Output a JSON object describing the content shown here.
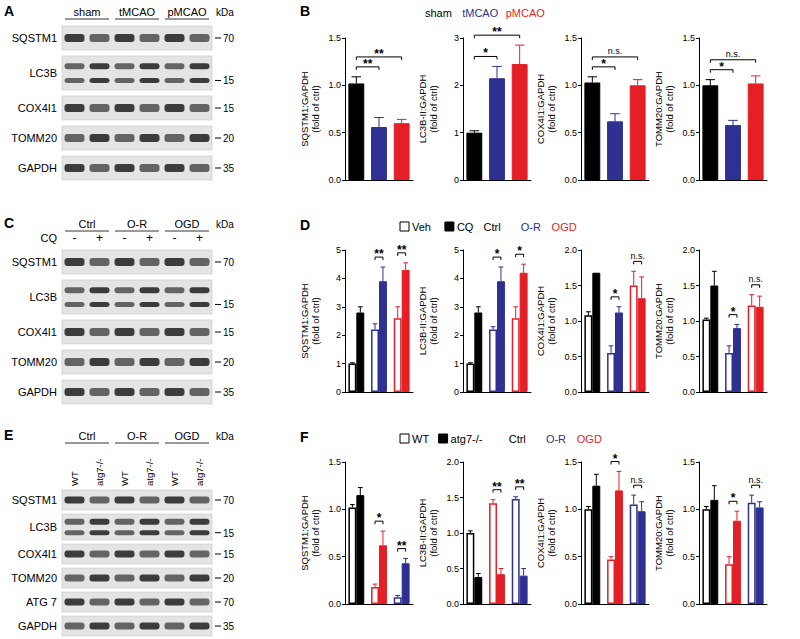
{
  "blots": [
    {
      "letter": "A",
      "kda_title": "kDa",
      "groups": [
        {
          "text": "sham",
          "span": 2
        },
        {
          "text": "tMCAO",
          "span": 2
        },
        {
          "text": "pMCAO",
          "span": 2
        }
      ],
      "rows": [
        {
          "label": "SQSTM1",
          "kda": 70
        },
        {
          "label": "LC3B",
          "kda": 15,
          "bands": 2
        },
        {
          "label": "COX4I1",
          "kda": 15
        },
        {
          "label": "TOMM20",
          "kda": 20
        },
        {
          "label": "GAPDH",
          "kda": 35
        }
      ]
    },
    {
      "letter": "C",
      "kda_title": "kDa",
      "groups": [
        {
          "text": "Ctrl",
          "span": 2
        },
        {
          "text": "O-R",
          "span": 2
        },
        {
          "text": "OGD",
          "span": 2
        }
      ],
      "subrow": {
        "label": "CQ",
        "lanes": [
          "-",
          "+",
          "-",
          "+",
          "-",
          "+"
        ]
      },
      "rows": [
        {
          "label": "SQSTM1",
          "kda": 70
        },
        {
          "label": "LC3B",
          "kda": 15,
          "bands": 2
        },
        {
          "label": "COX4I1",
          "kda": 15
        },
        {
          "label": "TOMM20",
          "kda": 20
        },
        {
          "label": "GAPDH",
          "kda": 35
        }
      ]
    },
    {
      "letter": "E",
      "kda_title": "kDa",
      "groups": [
        {
          "text": "Ctrl",
          "span": 2
        },
        {
          "text": "O-R",
          "span": 2
        },
        {
          "text": "OGD",
          "span": 2
        }
      ],
      "subrow": {
        "lanes": [
          "WT",
          "atg7-/-",
          "WT",
          "atg7-/-",
          "WT",
          "atg7-/-"
        ]
      },
      "rows": [
        {
          "label": "SQSTM1",
          "kda": 70
        },
        {
          "label": "LC3B",
          "kda": 15,
          "bands": 2
        },
        {
          "label": "COX4I1",
          "kda": 15
        },
        {
          "label": "TOMM20",
          "kda": 20
        },
        {
          "label": "ATG 7",
          "kda": 70
        },
        {
          "label": "GAPDH",
          "kda": 35
        }
      ]
    }
  ],
  "panels": [
    {
      "letter": "B",
      "legend": [
        {
          "text": "sham",
          "color": "#000000"
        },
        {
          "text": "tMCAO",
          "color": "#2e3192"
        },
        {
          "text": "pMCAO",
          "color": "#e41f26"
        }
      ]
    },
    {
      "letter": "D",
      "legend": [
        {
          "text": "Veh",
          "marker": "open"
        },
        {
          "text": "CQ",
          "marker": "filled"
        },
        {
          "text": "Ctrl",
          "color": "#000000"
        },
        {
          "text": "O-R",
          "color": "#2e3192"
        },
        {
          "text": "OGD",
          "color": "#e41f26"
        }
      ]
    },
    {
      "letter": "F",
      "legend": [
        {
          "text": "WT",
          "marker": "open"
        },
        {
          "text": "atg7-/-",
          "marker": "filled"
        },
        {
          "text": "Ctrl",
          "color": "#000000"
        },
        {
          "text": "O-R",
          "color": "#2e3192"
        },
        {
          "text": "OGD",
          "color": "#e41f26"
        }
      ]
    }
  ],
  "chart_data": [
    {
      "type": "bar",
      "panel": "B",
      "ylabel": "SQSTM1:GAPDH\n(fold of ctrl)",
      "categories": [
        null,
        null,
        null
      ],
      "series": [
        {
          "values": [
            1.02,
            0.56,
            0.6
          ],
          "errors": [
            0.07,
            0.1,
            0.04
          ],
          "colors": [
            "#000000",
            "#2e3192",
            "#e41f26"
          ],
          "marker": "filled"
        }
      ],
      "ylim": [
        0,
        1.5
      ],
      "yticks": [
        {
          "value": 0,
          "label": "0.0"
        },
        0.5,
        {
          "value": 1,
          "label": "1.0"
        },
        1.5
      ],
      "grid": false,
      "tick_labels": "y",
      "annotations": [
        {
          "text": "**",
          "from": 0,
          "to": 1
        },
        {
          "text": "**",
          "from": 0,
          "to": 2
        }
      ]
    },
    {
      "type": "bar",
      "panel": "B",
      "ylabel": "LC3B-II:GAPDH\n(fold of ctrl)",
      "categories": [
        null,
        null,
        null
      ],
      "series": [
        {
          "values": [
            1.0,
            2.15,
            2.45
          ],
          "errors": [
            0.04,
            0.25,
            0.4
          ],
          "colors": [
            "#000000",
            "#2e3192",
            "#e41f26"
          ],
          "marker": "filled"
        }
      ],
      "ylim": [
        0,
        3
      ],
      "yticks": [
        0,
        1,
        2,
        3
      ],
      "grid": false,
      "tick_labels": "y",
      "annotations": [
        {
          "text": "*",
          "from": 0,
          "to": 1
        },
        {
          "text": "**",
          "from": 0,
          "to": 2
        }
      ]
    },
    {
      "type": "bar",
      "panel": "B",
      "ylabel": "COX4I1:GAPDH\n(fold of ctrl)",
      "categories": [
        null,
        null,
        null
      ],
      "series": [
        {
          "values": [
            1.03,
            0.62,
            1.0
          ],
          "errors": [
            0.06,
            0.08,
            0.06
          ],
          "colors": [
            "#000000",
            "#2e3192",
            "#e41f26"
          ],
          "marker": "filled"
        }
      ],
      "ylim": [
        0,
        1.5
      ],
      "yticks": [
        {
          "value": 0,
          "label": "0.0"
        },
        0.5,
        {
          "value": 1,
          "label": "1.0"
        },
        1.5
      ],
      "grid": false,
      "tick_labels": "y",
      "annotations": [
        {
          "text": "*",
          "from": 0,
          "to": 1
        },
        {
          "text": "n.s.",
          "from": 0,
          "to": 2
        }
      ]
    },
    {
      "type": "bar",
      "panel": "B",
      "ylabel": "TOMM20:GAPDH\n(fold of ctrl)",
      "categories": [
        null,
        null,
        null
      ],
      "series": [
        {
          "values": [
            1.0,
            0.58,
            1.02
          ],
          "errors": [
            0.06,
            0.05,
            0.08
          ],
          "colors": [
            "#000000",
            "#2e3192",
            "#e41f26"
          ],
          "marker": "filled"
        }
      ],
      "ylim": [
        0,
        1.5
      ],
      "yticks": [
        {
          "value": 0,
          "label": "0.0"
        },
        0.5,
        {
          "value": 1,
          "label": "1.0"
        },
        1.5
      ],
      "grid": false,
      "tick_labels": "y",
      "annotations": [
        {
          "text": "*",
          "from": 0,
          "to": 1
        },
        {
          "text": "n.s.",
          "from": 0,
          "to": 2
        }
      ]
    },
    {
      "type": "bar",
      "panel": "D",
      "ylabel": "SQSTM1:GAPDH\n(fold of ctrl)",
      "categories": [
        null,
        null,
        null
      ],
      "series": [
        {
          "values": [
            1.0,
            2.2,
            2.6
          ],
          "errors": [
            0.03,
            0.2,
            0.4
          ],
          "colors": [
            "#000000",
            "#2e3192",
            "#e41f26"
          ],
          "marker": "open"
        },
        {
          "values": [
            2.8,
            3.9,
            4.3
          ],
          "errors": [
            0.2,
            0.5,
            0.25
          ],
          "colors": [
            "#000000",
            "#2e3192",
            "#e41f26"
          ],
          "marker": "filled"
        }
      ],
      "ylim": [
        0,
        5
      ],
      "yticks": [
        0,
        1,
        2,
        3,
        4,
        5
      ],
      "grid": false,
      "tick_labels": "y",
      "annotations": [
        {
          "text": "**",
          "from": 2,
          "to": 3
        },
        {
          "text": "**",
          "from": 4,
          "to": 5
        }
      ]
    },
    {
      "type": "bar",
      "panel": "D",
      "ylabel": "LC3B-II:GAPDH\n(fold of ctrl)",
      "categories": [
        null,
        null,
        null
      ],
      "series": [
        {
          "values": [
            1.0,
            2.2,
            2.6
          ],
          "errors": [
            0.03,
            0.1,
            0.4
          ],
          "colors": [
            "#000000",
            "#2e3192",
            "#e41f26"
          ],
          "marker": "open"
        },
        {
          "values": [
            2.8,
            3.9,
            4.2
          ],
          "errors": [
            0.2,
            0.5,
            0.3
          ],
          "colors": [
            "#000000",
            "#2e3192",
            "#e41f26"
          ],
          "marker": "filled"
        }
      ],
      "ylim": [
        0,
        5
      ],
      "yticks": [
        0,
        1,
        2,
        3,
        4,
        5
      ],
      "grid": false,
      "tick_labels": "y",
      "annotations": [
        {
          "text": "*",
          "from": 2,
          "to": 3
        },
        {
          "text": "*",
          "from": 4,
          "to": 5
        }
      ]
    },
    {
      "type": "bar",
      "panel": "D",
      "ylabel": "COX4I1:GAPDH\n(fold of ctrl)",
      "categories": [
        null,
        null,
        null
      ],
      "series": [
        {
          "values": [
            1.08,
            0.55,
            1.5
          ],
          "errors": [
            0.05,
            0.1,
            0.2
          ],
          "colors": [
            "#000000",
            "#2e3192",
            "#e41f26"
          ],
          "marker": "open"
        },
        {
          "values": [
            1.68,
            1.12,
            1.32
          ],
          "errors": [
            0,
            0.08,
            0.3
          ],
          "colors": [
            "#000000",
            "#2e3192",
            "#e41f26"
          ],
          "marker": "filled"
        }
      ],
      "ylim": [
        0,
        2
      ],
      "yticks": [
        {
          "value": 0,
          "label": "0.0"
        },
        0.5,
        {
          "value": 1,
          "label": "1.0"
        },
        1.5,
        {
          "value": 2,
          "label": "2.0"
        }
      ],
      "grid": false,
      "tick_labels": "y",
      "annotations": [
        {
          "text": "*",
          "from": 2,
          "to": 3
        },
        {
          "text": "n.s.",
          "from": 4,
          "to": 5
        }
      ]
    },
    {
      "type": "bar",
      "panel": "D",
      "ylabel": "TOMM20:GAPDH\n(fold of ctrl)",
      "categories": [
        null,
        null,
        null
      ],
      "series": [
        {
          "values": [
            1.02,
            0.55,
            1.22
          ],
          "errors": [
            0.02,
            0.1,
            0.15
          ],
          "colors": [
            "#000000",
            "#2e3192",
            "#e41f26"
          ],
          "marker": "open"
        },
        {
          "values": [
            1.5,
            0.9,
            1.2
          ],
          "errors": [
            0.2,
            0.05,
            0.15
          ],
          "colors": [
            "#000000",
            "#2e3192",
            "#e41f26"
          ],
          "marker": "filled"
        }
      ],
      "ylim": [
        0,
        2
      ],
      "yticks": [
        {
          "value": 0,
          "label": "0.0"
        },
        0.5,
        {
          "value": 1,
          "label": "1.0"
        },
        1.5,
        {
          "value": 2,
          "label": "2.0"
        }
      ],
      "grid": false,
      "tick_labels": "y",
      "annotations": [
        {
          "text": "*",
          "from": 2,
          "to": 3
        },
        {
          "text": "n.s.",
          "from": 4,
          "to": 5
        }
      ]
    },
    {
      "type": "bar",
      "panel": "F",
      "ylabel": "SQSTM1:GAPDH\n(fold of ctrl)",
      "categories": [
        null,
        null,
        null
      ],
      "series": [
        {
          "values": [
            1.02,
            0.18,
            0.07
          ],
          "errors": [
            0.03,
            0.03,
            0.02
          ],
          "colors": [
            "#000000",
            "#e41f26",
            "#2e3192"
          ],
          "marker": "open"
        },
        {
          "values": [
            1.15,
            0.62,
            0.43
          ],
          "errors": [
            0.08,
            0.15,
            0.05
          ],
          "colors": [
            "#000000",
            "#e41f26",
            "#2e3192"
          ],
          "marker": "filled"
        }
      ],
      "ylim": [
        0,
        1.5
      ],
      "yticks": [
        {
          "value": 0,
          "label": "0.0"
        },
        0.5,
        {
          "value": 1,
          "label": "1.0"
        },
        1.5
      ],
      "grid": false,
      "tick_labels": "y",
      "annotations": [
        {
          "text": "*",
          "from": 2,
          "to": 3
        },
        {
          "text": "**",
          "from": 4,
          "to": 5
        }
      ]
    },
    {
      "type": "bar",
      "panel": "F",
      "ylabel": "LC3B-II:GAPDH\n(fold of ctrl)",
      "categories": [
        null,
        null,
        null
      ],
      "series": [
        {
          "values": [
            1.0,
            1.42,
            1.48
          ],
          "errors": [
            0.03,
            0.05,
            0.03
          ],
          "colors": [
            "#000000",
            "#e41f26",
            "#2e3192"
          ],
          "marker": "open"
        },
        {
          "values": [
            0.38,
            0.42,
            0.4
          ],
          "errors": [
            0.05,
            0.08,
            0.1
          ],
          "colors": [
            "#000000",
            "#e41f26",
            "#2e3192"
          ],
          "marker": "filled"
        }
      ],
      "ylim": [
        0,
        2
      ],
      "yticks": [
        {
          "value": 0,
          "label": "0.0"
        },
        0.5,
        {
          "value": 1,
          "label": "1.0"
        },
        1.5,
        {
          "value": 2,
          "label": "2.0"
        }
      ],
      "grid": false,
      "tick_labels": "y",
      "annotations": [
        {
          "text": "**",
          "from": 2,
          "to": 3
        },
        {
          "text": "**",
          "from": 4,
          "to": 5
        }
      ]
    },
    {
      "type": "bar",
      "panel": "F",
      "ylabel": "COX4I1:GAPDH\n(fold of ctrl)",
      "categories": [
        null,
        null,
        null
      ],
      "series": [
        {
          "values": [
            1.0,
            0.47,
            1.05
          ],
          "errors": [
            0.03,
            0.03,
            0.1
          ],
          "colors": [
            "#000000",
            "#e41f26",
            "#2e3192"
          ],
          "marker": "open"
        },
        {
          "values": [
            1.25,
            1.2,
            0.98
          ],
          "errors": [
            0.12,
            0.2,
            0.1
          ],
          "colors": [
            "#000000",
            "#e41f26",
            "#2e3192"
          ],
          "marker": "filled"
        }
      ],
      "ylim": [
        0,
        1.5
      ],
      "yticks": [
        {
          "value": 0,
          "label": "0.0"
        },
        0.5,
        {
          "value": 1,
          "label": "1.0"
        },
        1.5
      ],
      "grid": false,
      "tick_labels": "y",
      "annotations": [
        {
          "text": "*",
          "from": 2,
          "to": 3
        },
        {
          "text": "n.s.",
          "from": 4,
          "to": 5
        }
      ]
    },
    {
      "type": "bar",
      "panel": "F",
      "ylabel": "TOMM20:GAPDH\n(fold of ctrl)",
      "categories": [
        null,
        null,
        null
      ],
      "series": [
        {
          "values": [
            1.0,
            0.42,
            1.07
          ],
          "errors": [
            0.03,
            0.08,
            0.08
          ],
          "colors": [
            "#000000",
            "#e41f26",
            "#2e3192"
          ],
          "marker": "open"
        },
        {
          "values": [
            1.1,
            0.88,
            1.02
          ],
          "errors": [
            0.15,
            0.1,
            0.06
          ],
          "colors": [
            "#000000",
            "#e41f26",
            "#2e3192"
          ],
          "marker": "filled"
        }
      ],
      "ylim": [
        0,
        1.5
      ],
      "yticks": [
        {
          "value": 0,
          "label": "0.0"
        },
        0.5,
        {
          "value": 1,
          "label": "1.0"
        },
        1.5
      ],
      "grid": false,
      "tick_labels": "y",
      "annotations": [
        {
          "text": "*",
          "from": 2,
          "to": 3
        },
        {
          "text": "n.s.",
          "from": 4,
          "to": 5
        }
      ]
    }
  ]
}
